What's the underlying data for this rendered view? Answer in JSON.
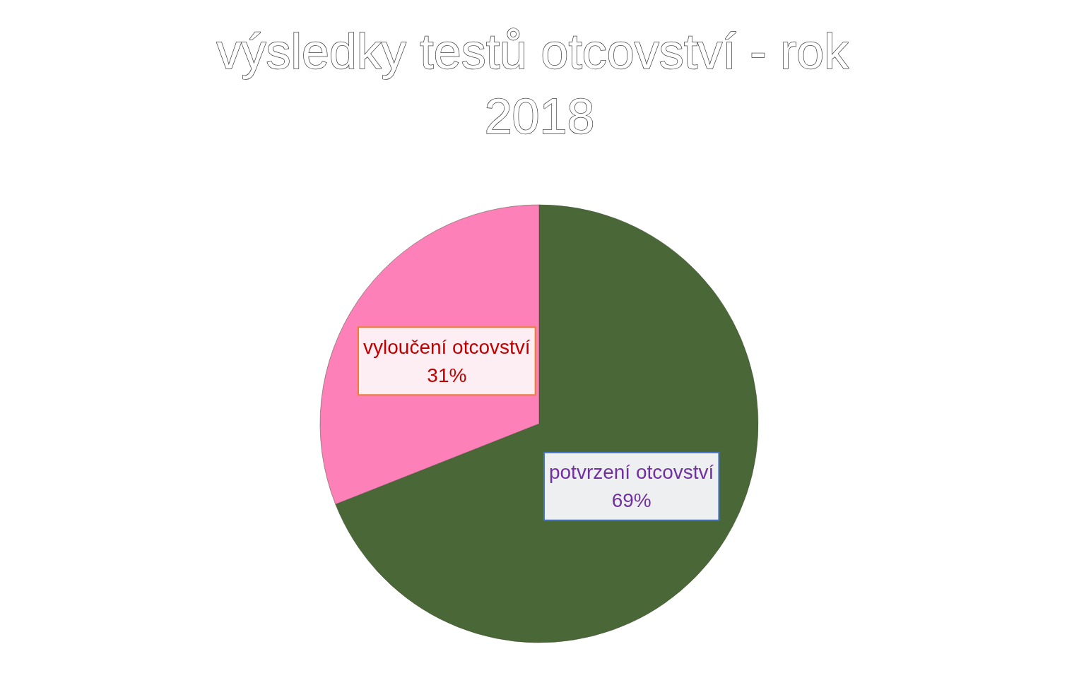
{
  "chart_data": {
    "type": "pie",
    "title": "výsledky testů otcovství - rok 2018",
    "categories": [
      "potvrzení otcovství",
      "vyloučení otcovství"
    ],
    "values": [
      69,
      31
    ],
    "colors": [
      "#4a6737",
      "#fd80b8"
    ],
    "value_labels": [
      "69%",
      "31%"
    ]
  }
}
